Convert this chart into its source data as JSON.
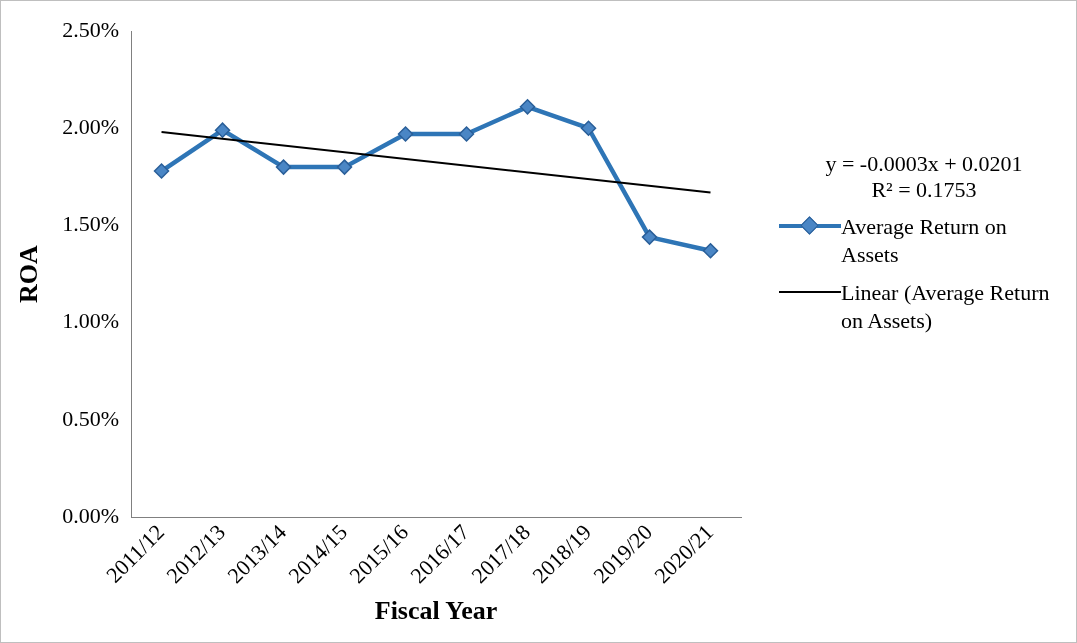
{
  "chart_data": {
    "type": "line",
    "xlabel": "Fiscal Year",
    "ylabel": "ROA",
    "categories": [
      "2011/12",
      "2012/13",
      "2013/14",
      "2014/15",
      "2015/16",
      "2016/17",
      "2017/18",
      "2018/19",
      "2019/20",
      "2020/21"
    ],
    "series": [
      {
        "name": "Average Return on Assets",
        "color": "#2e75b6",
        "marker": "diamond",
        "values": [
          1.78,
          1.99,
          1.8,
          1.8,
          1.97,
          1.97,
          2.11,
          2.0,
          1.44,
          1.37
        ]
      },
      {
        "name": "Linear (Average Return on Assets)",
        "type": "line",
        "color": "#000000",
        "marker": "none",
        "x": [
          "2011/12",
          "2020/21"
        ],
        "values": [
          1.98,
          1.67
        ]
      }
    ],
    "ylim": [
      0,
      2.5
    ],
    "yticks": [
      {
        "value": 0,
        "label": "0.00%"
      },
      {
        "value": 0.5,
        "label": "0.50%"
      },
      {
        "value": 1,
        "label": "1.00%"
      },
      {
        "value": 1.5,
        "label": "1.50%"
      },
      {
        "value": 2,
        "label": "2.00%"
      },
      {
        "value": 2.5,
        "label": "2.50%"
      }
    ],
    "annotations": [
      "y = -0.0003x + 0.0201",
      "R² = 0.1753"
    ],
    "grid": false,
    "legend": "right",
    "line_style": "solid"
  }
}
